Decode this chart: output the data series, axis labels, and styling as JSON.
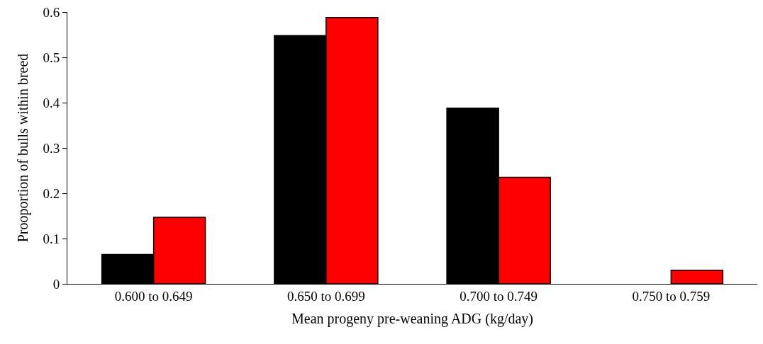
{
  "chart_data": {
    "type": "bar",
    "xlabel": "Mean progeny pre-weaning ADG (kg/day)",
    "ylabel": "Prooportion of bulls within breed",
    "categories": [
      "0.600 to 0.649",
      "0.650 to 0.699",
      "0.700 to 0.749",
      "0.750 to 0.759"
    ],
    "series": [
      {
        "color": "#000000",
        "values": [
          0.065,
          0.548,
          0.388,
          0
        ]
      },
      {
        "color": "#ff0000",
        "values": [
          0.147,
          0.588,
          0.235,
          0.03
        ]
      }
    ],
    "ylim": [
      0,
      0.6
    ],
    "yticks": [
      0,
      0.1,
      0.2,
      0.3,
      0.4,
      0.5,
      0.6
    ]
  }
}
